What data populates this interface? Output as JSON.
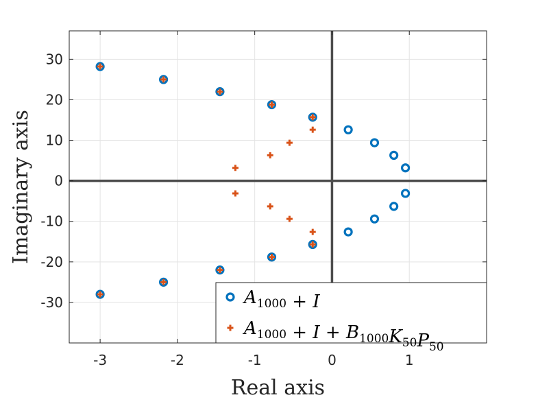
{
  "chart_data": {
    "type": "scatter",
    "xlabel": "Real axis",
    "ylabel": "Imaginary axis",
    "xlim": [
      -3.4,
      2.0
    ],
    "ylim": [
      -40,
      37
    ],
    "xticks": [
      -3,
      -2,
      -1,
      0,
      1
    ],
    "yticks": [
      -30,
      -20,
      -10,
      0,
      10,
      20,
      30
    ],
    "xtick_labels": [
      "-3",
      "-2",
      "-1",
      "0",
      "1"
    ],
    "ytick_labels": [
      "-30",
      "-20",
      "-10",
      "0",
      "10",
      "20",
      "30"
    ],
    "grid": true,
    "legend_position": "bottom-right",
    "series": [
      {
        "marker": "circle",
        "color": "#0072BD",
        "legend_parts": [
          {
            "t": "A"
          },
          {
            "t": "1000",
            "sub": true
          },
          {
            "t": " + ",
            "op": true
          },
          {
            "t": "I"
          }
        ],
        "points": [
          [
            -3.0,
            28.2
          ],
          [
            -3.0,
            -28.0
          ],
          [
            -2.18,
            25.0
          ],
          [
            -2.18,
            -25.0
          ],
          [
            -1.45,
            22.0
          ],
          [
            -1.45,
            -22.0
          ],
          [
            -0.78,
            18.8
          ],
          [
            -0.78,
            -18.8
          ],
          [
            -0.25,
            15.7
          ],
          [
            -0.25,
            -15.7
          ],
          [
            0.21,
            12.6
          ],
          [
            0.21,
            -12.6
          ],
          [
            0.55,
            9.4
          ],
          [
            0.55,
            -9.4
          ],
          [
            0.8,
            6.3
          ],
          [
            0.8,
            -6.3
          ],
          [
            0.95,
            3.2
          ],
          [
            0.95,
            -3.1
          ]
        ]
      },
      {
        "marker": "plus",
        "color": "#D95319",
        "legend_parts": [
          {
            "t": "A"
          },
          {
            "t": "1000",
            "sub": true
          },
          {
            "t": " + ",
            "op": true
          },
          {
            "t": "I"
          },
          {
            "t": " + ",
            "op": true
          },
          {
            "t": "B"
          },
          {
            "t": "1000",
            "sub": true
          },
          {
            "t": "K"
          },
          {
            "t": "50",
            "sub": true
          },
          {
            "t": "P"
          },
          {
            "t": "50",
            "sub": true
          }
        ],
        "points": [
          [
            -3.0,
            28.2
          ],
          [
            -3.0,
            -28.0
          ],
          [
            -2.18,
            25.0
          ],
          [
            -2.18,
            -25.0
          ],
          [
            -1.45,
            22.0
          ],
          [
            -1.45,
            -22.0
          ],
          [
            -0.78,
            18.8
          ],
          [
            -0.78,
            -18.8
          ],
          [
            -0.25,
            15.7
          ],
          [
            -0.25,
            -15.7
          ],
          [
            -0.25,
            12.6
          ],
          [
            -0.25,
            -12.6
          ],
          [
            -0.55,
            9.4
          ],
          [
            -0.55,
            -9.4
          ],
          [
            -0.8,
            6.3
          ],
          [
            -0.8,
            -6.3
          ],
          [
            -1.25,
            3.2
          ],
          [
            -1.25,
            -3.1
          ]
        ]
      }
    ]
  }
}
